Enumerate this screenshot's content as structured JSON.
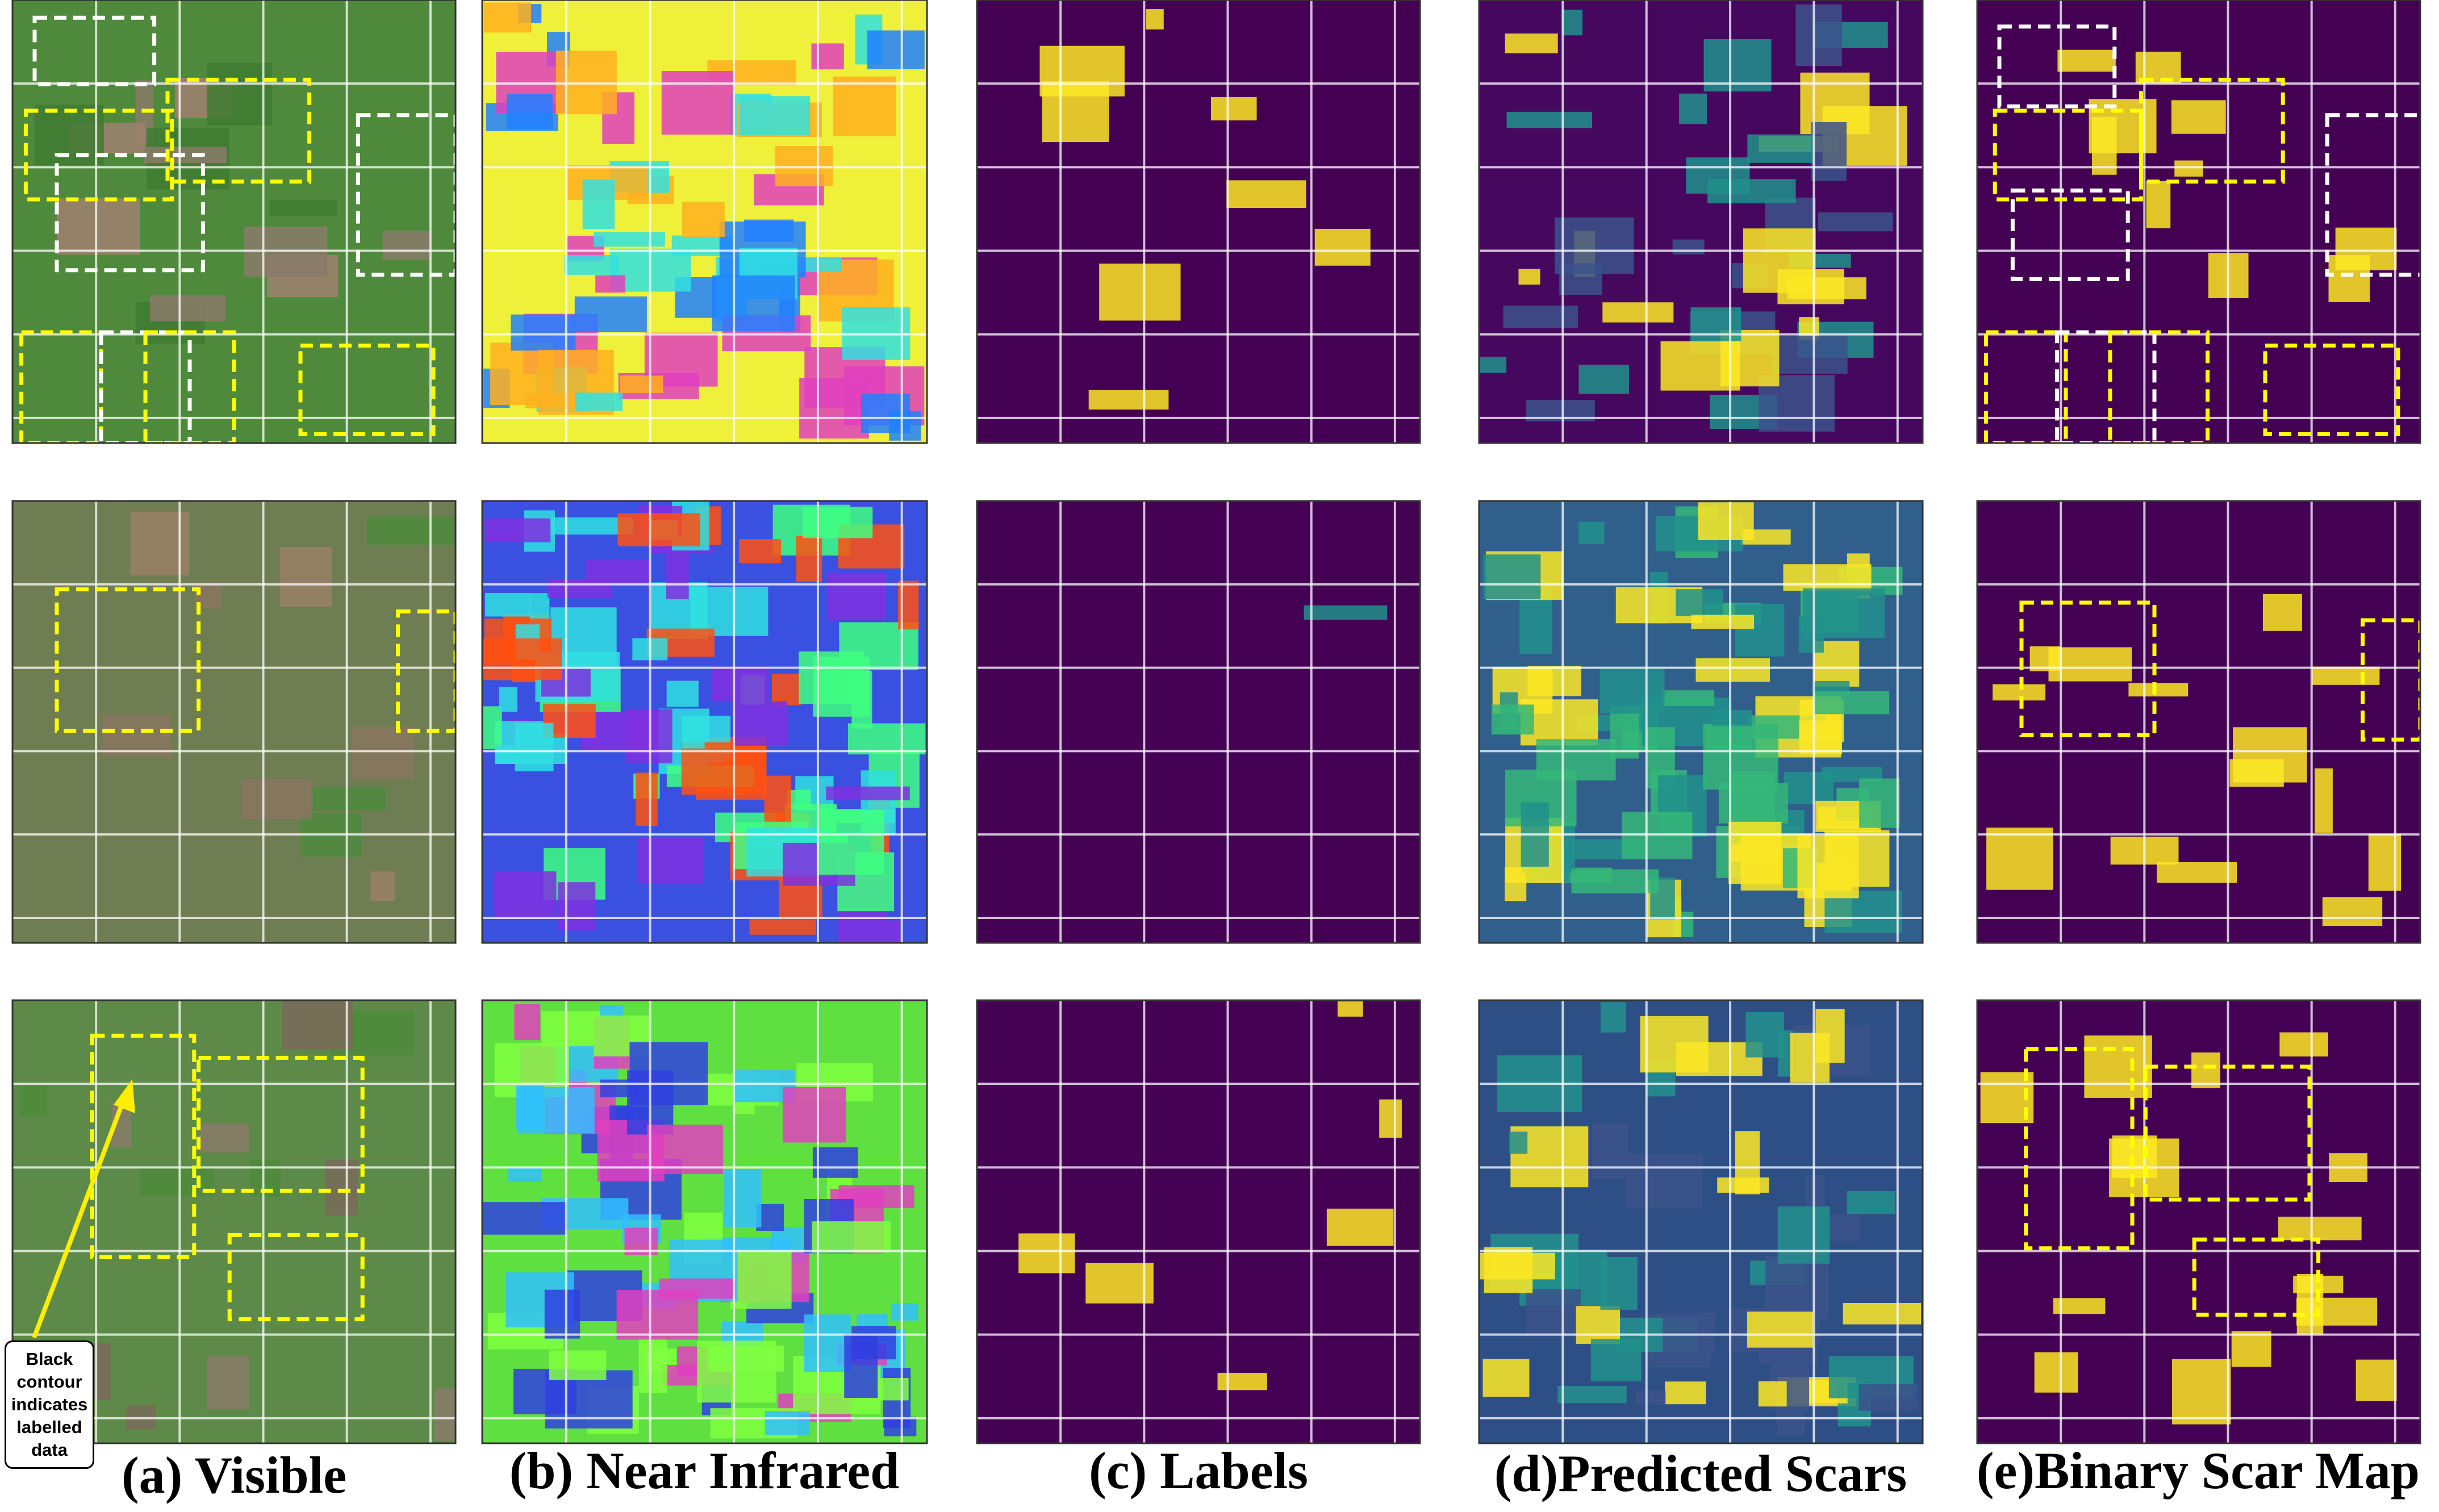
{
  "captions": [
    "(a) Visible",
    "(b) Near Infrared",
    "(c) Labels",
    "(d)Predicted Scars",
    "(e)Binary Scar Map"
  ],
  "annotation": "Black contour indicates labelled data"
}
